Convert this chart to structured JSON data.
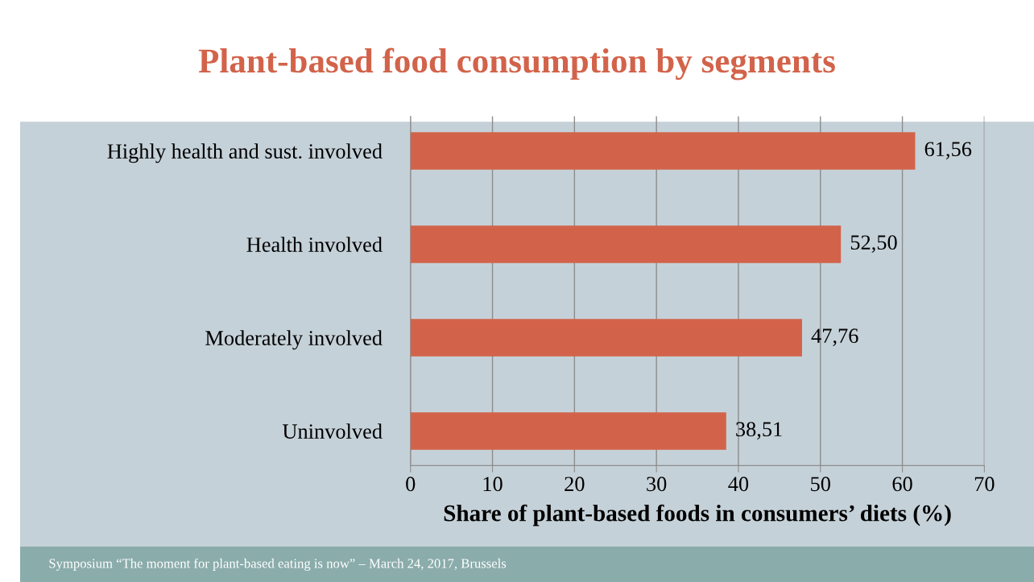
{
  "chart_data": {
    "type": "bar",
    "orientation": "horizontal",
    "title": "Plant-based food consumption by segments",
    "categories": [
      "Highly health and sust. involved",
      "Health involved",
      "Moderately involved",
      "Uninvolved"
    ],
    "values": [
      61.56,
      52.5,
      47.76,
      38.51
    ],
    "value_labels": [
      "61,56",
      "52,50",
      "47,76",
      "38,51"
    ],
    "color": "#d2634a",
    "xlabel": "Share of plant-based foods in consumers’ diets (%)",
    "xlim": [
      0,
      70
    ],
    "xticks": [
      0,
      10,
      20,
      30,
      40,
      50,
      60,
      70
    ],
    "grid": "x",
    "annotations": [
      "Symposium “The moment for plant-based eating is now” – March 24, 2017, Brussels"
    ]
  }
}
